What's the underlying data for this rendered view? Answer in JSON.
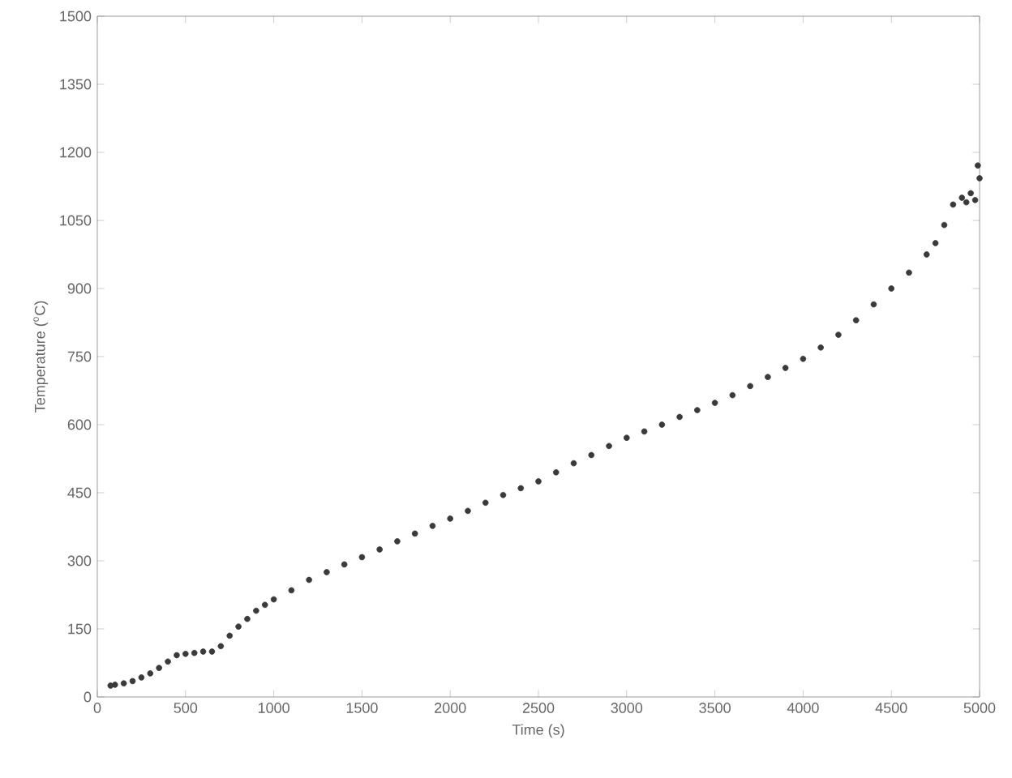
{
  "chart_data": {
    "type": "scatter",
    "xlabel": "Time (s)",
    "ylabel": "Temperature ($^{o}$C)",
    "xlim": [
      0,
      5000
    ],
    "xticks": [
      0,
      500,
      1000,
      1500,
      2000,
      2500,
      3000,
      3500,
      4000,
      4500,
      5000
    ],
    "ylim": [
      0,
      1500
    ],
    "yticks": [
      0,
      150,
      300,
      450,
      600,
      750,
      900,
      1050,
      1200,
      1350,
      1500
    ],
    "grid": false,
    "marker": "circle",
    "series": [
      {
        "color": "#3a3a3a",
        "x": [
          75,
          100,
          150,
          200,
          250,
          300,
          350,
          400,
          450,
          500,
          550,
          600,
          650,
          700,
          750,
          800,
          850,
          900,
          950,
          1000,
          1100,
          1200,
          1300,
          1400,
          1500,
          1600,
          1700,
          1800,
          1900,
          2000,
          2100,
          2200,
          2300,
          2400,
          2500,
          2600,
          2700,
          2800,
          2900,
          3000,
          3100,
          3200,
          3300,
          3400,
          3500,
          3600,
          3700,
          3800,
          3900,
          4000,
          4100,
          4200,
          4300,
          4400,
          4500,
          4600,
          4700,
          4750,
          4800,
          4850,
          4900,
          4925,
          4950,
          4975,
          4990,
          5000
        ],
        "values": [
          25,
          27,
          30,
          35,
          43,
          52,
          64,
          78,
          92,
          95,
          97,
          100,
          100,
          112,
          135,
          155,
          172,
          190,
          203,
          215,
          235,
          258,
          275,
          292,
          308,
          325,
          343,
          360,
          377,
          393,
          410,
          428,
          445,
          460,
          475,
          495,
          515,
          533,
          553,
          571,
          585,
          600,
          617,
          632,
          648,
          665,
          685,
          705,
          725,
          745,
          770,
          798,
          830,
          865,
          900,
          935,
          975,
          1000,
          1040,
          1085,
          1100,
          1090,
          1110,
          1095,
          1171,
          1143
        ]
      }
    ]
  }
}
